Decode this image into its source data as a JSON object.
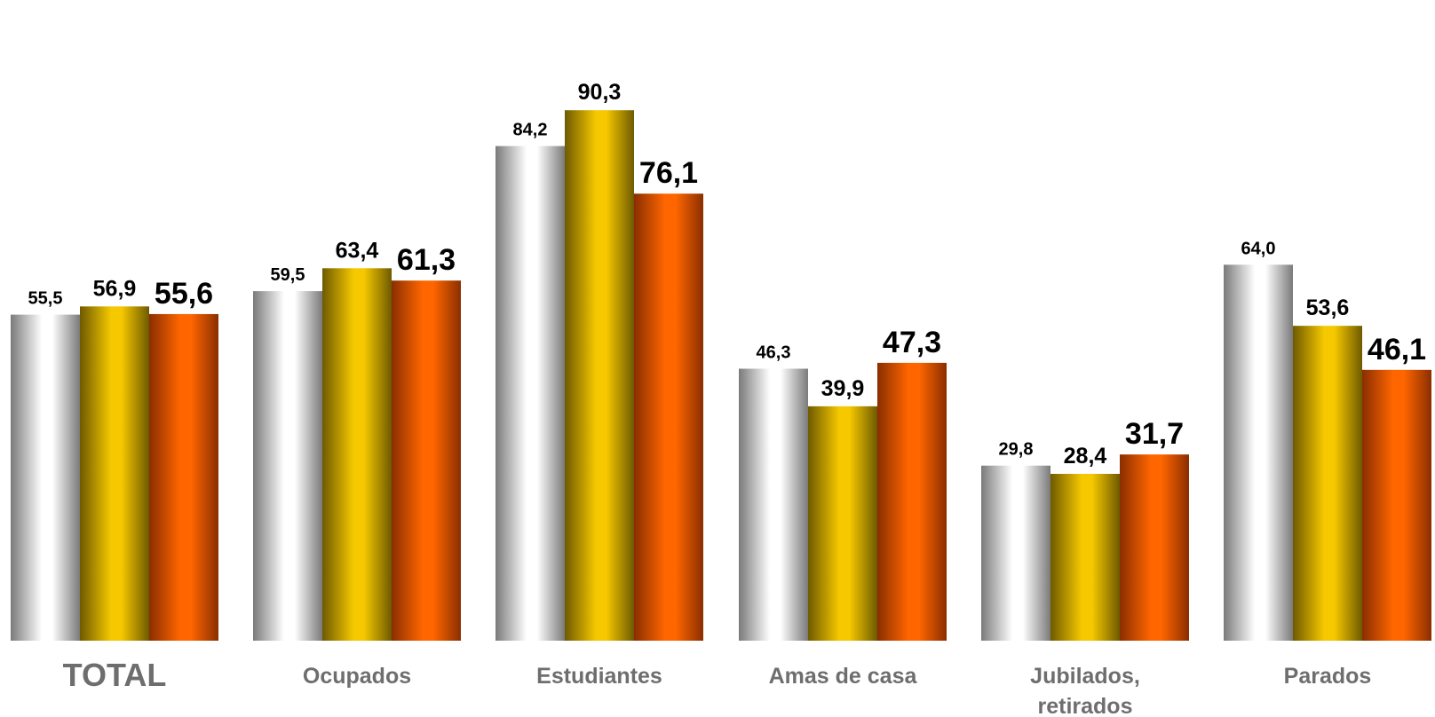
{
  "chart_data": {
    "type": "bar",
    "title": "",
    "xlabel": "",
    "ylabel": "",
    "ylim": [
      0,
      100
    ],
    "grid": false,
    "legend": "none",
    "categories": [
      [
        "TOTAL"
      ],
      [
        "Ocupados"
      ],
      [
        "Estudiantes"
      ],
      [
        "Amas de casa"
      ],
      [
        "Jubilados,",
        "retirados"
      ],
      [
        "Parados"
      ]
    ],
    "series": [
      {
        "values": [
          55.5,
          59.5,
          84.2,
          46.3,
          29.8,
          64.0
        ],
        "labels": [
          "55,5",
          "59,5",
          "84,2",
          "46,3",
          "29,8",
          "64,0"
        ],
        "color": "#ffffff",
        "edge_color": "#7a7a7a"
      },
      {
        "values": [
          56.9,
          63.4,
          90.3,
          39.9,
          28.4,
          53.6
        ],
        "labels": [
          "56,9",
          "63,4",
          "90,3",
          "39,9",
          "28,4",
          "53,6"
        ],
        "color": "#f5c800",
        "edge_color": "#6e5a00"
      },
      {
        "values": [
          55.6,
          61.3,
          76.1,
          47.3,
          31.7,
          46.1
        ],
        "labels": [
          "55,6",
          "61,3",
          "76,1",
          "47,3",
          "31,7",
          "46,1"
        ],
        "color": "#ff6600",
        "edge_color": "#8a2e00"
      }
    ]
  }
}
